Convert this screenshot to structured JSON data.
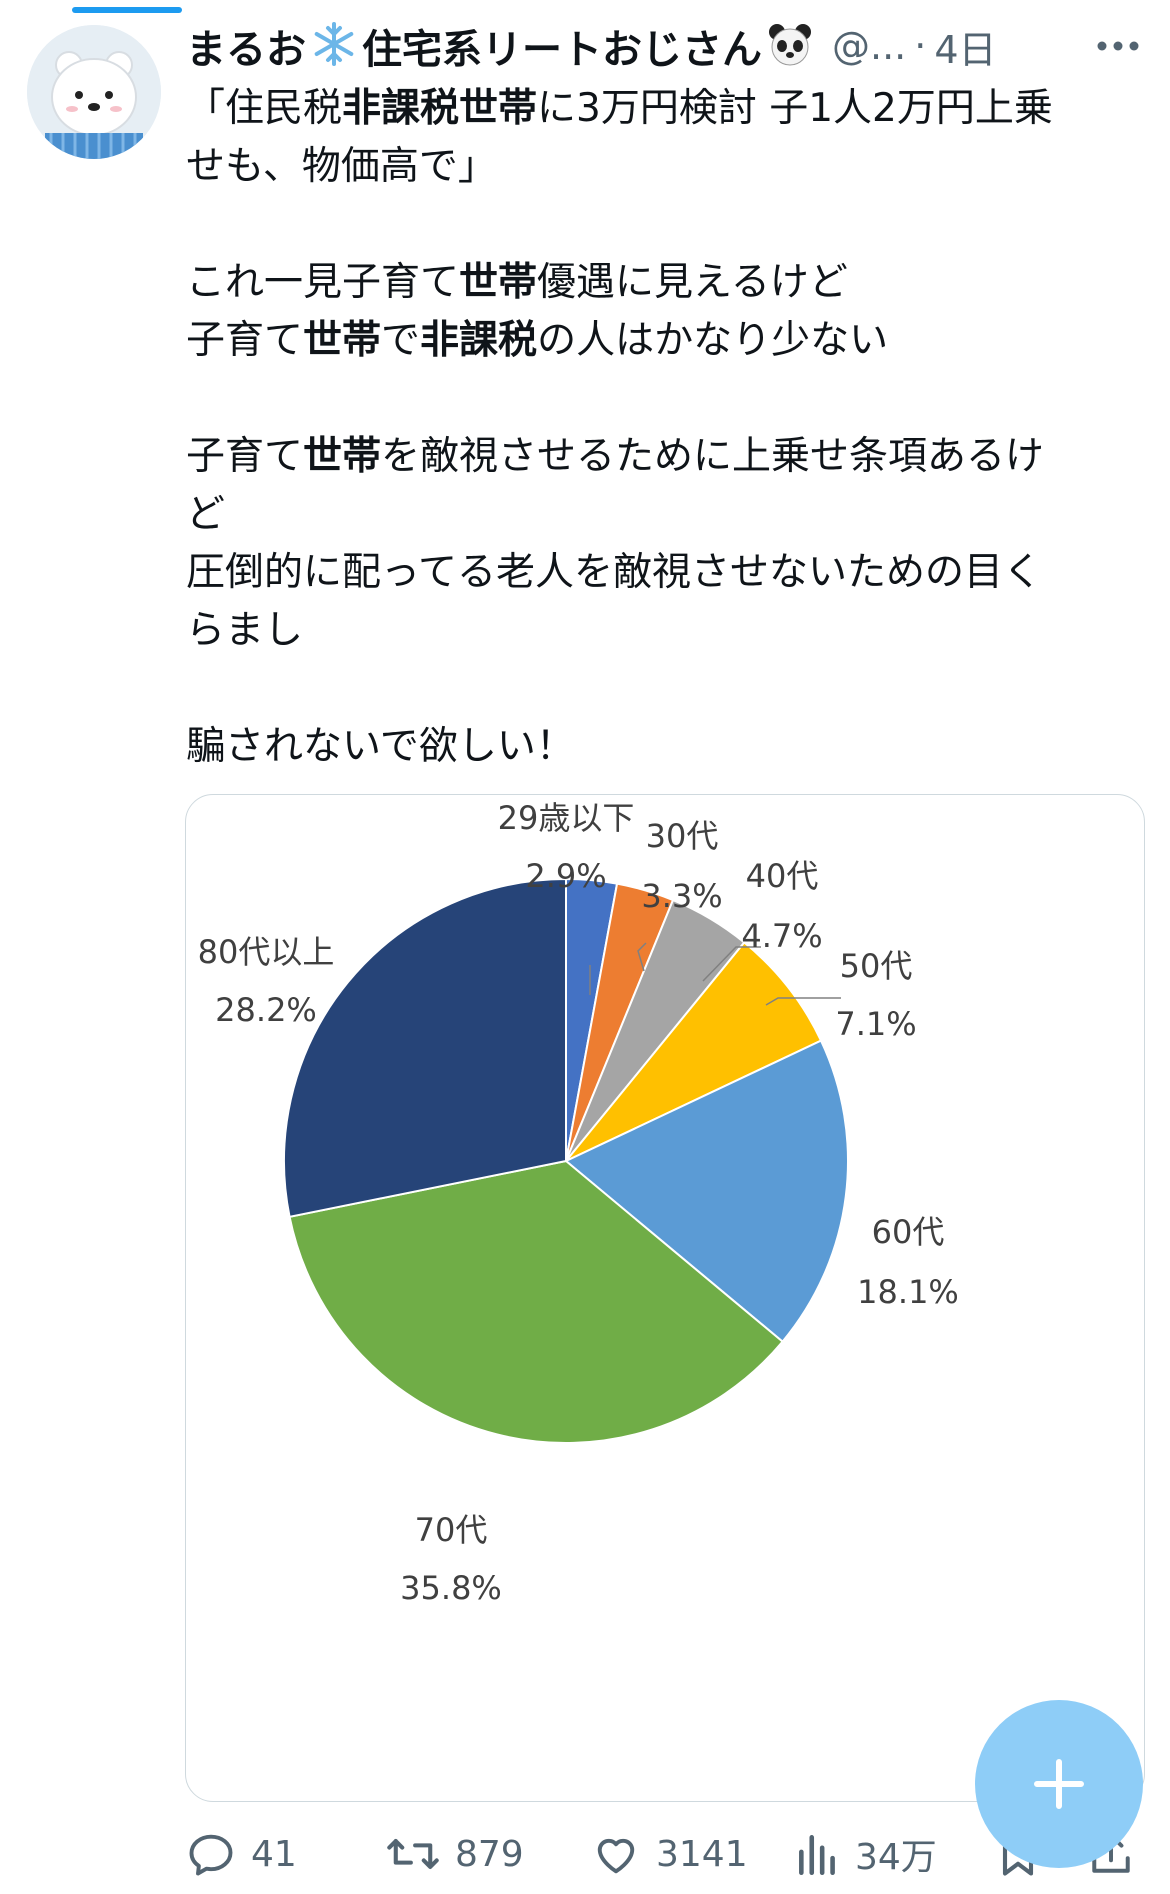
{
  "tweet": {
    "display_name": "まるお",
    "display_name_suffix": "住宅系リートおじさん",
    "handle": "@...",
    "time_separator": "·",
    "time": "4日",
    "text_parts": [
      {
        "t": "「住民税",
        "b": false
      },
      {
        "t": "非課税世帯",
        "b": true
      },
      {
        "t": "に3万円検討 子1人2万円上乗\nせも、物価高で」\n\nこれ一見子育て",
        "b": false
      },
      {
        "t": "世帯",
        "b": true
      },
      {
        "t": "優遇に見えるけど\n子育て",
        "b": false
      },
      {
        "t": "世帯",
        "b": true
      },
      {
        "t": "で",
        "b": false
      },
      {
        "t": "非課税",
        "b": true
      },
      {
        "t": "の人はかなり少ない\n\n子育て",
        "b": false
      },
      {
        "t": "世帯",
        "b": true
      },
      {
        "t": "を敵視させるために上乗せ条項あるけ\nど\n圧倒的に配ってる老人を敵視させないための目く\nらまし\n\n騙されないで欲しい！",
        "b": false
      }
    ]
  },
  "chart_data": {
    "type": "pie",
    "categories": [
      "29歳以下",
      "30代",
      "40代",
      "50代",
      "60代",
      "70代",
      "80代以上"
    ],
    "values": [
      2.9,
      3.3,
      4.7,
      7.1,
      18.1,
      35.8,
      28.2
    ],
    "value_labels": [
      "2.9%",
      "3.3%",
      "4.7%",
      "7.1%",
      "18.1%",
      "35.8%",
      "28.2%"
    ],
    "colors": [
      "#4472c4",
      "#ed7d31",
      "#a5a5a5",
      "#ffc000",
      "#5b9bd5",
      "#70ad47",
      "#264478"
    ]
  },
  "actions": {
    "reply_count": "41",
    "retweet_count": "879",
    "like_count": "3141",
    "views_count": "34万"
  },
  "icons": {
    "avatar": "polar-bear-avatar",
    "snowflake": "snowflake-icon",
    "panda": "panda-icon",
    "more": "more-icon",
    "reply": "reply-icon",
    "retweet": "retweet-icon",
    "like": "heart-icon",
    "views": "views-icon",
    "bookmark": "bookmark-icon",
    "share": "share-icon",
    "compose": "plus-icon"
  },
  "colors": {
    "accent": "#1d9bf0",
    "fab": "#8ecdf7",
    "muted": "#536471"
  }
}
